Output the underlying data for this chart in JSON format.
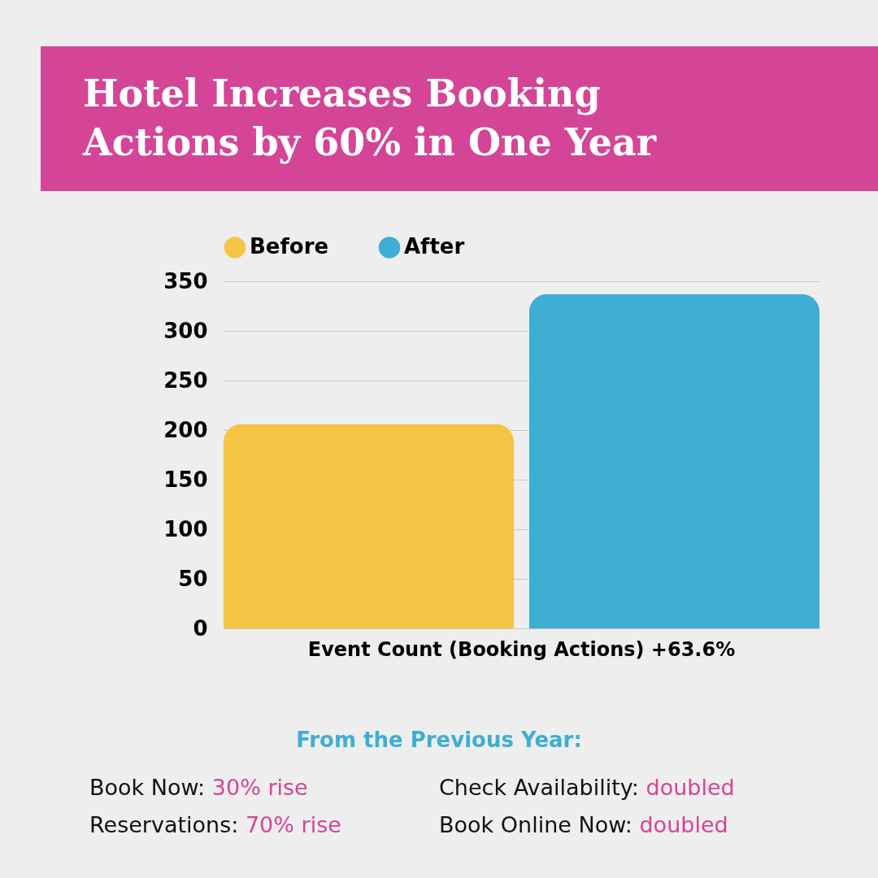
{
  "chart_data": {
    "type": "bar",
    "title": "Hotel Increases Booking Actions by 60% in One Year",
    "categories": [
      "Event Count (Booking Actions) +63.6%"
    ],
    "series": [
      {
        "name": "Before",
        "color": "#f5c445",
        "values": [
          206
        ]
      },
      {
        "name": "After",
        "color": "#3eaed5",
        "values": [
          337
        ]
      }
    ],
    "ylim": [
      0,
      350
    ],
    "yticks": [
      0,
      50,
      100,
      150,
      200,
      250,
      300,
      350
    ],
    "grid": "y",
    "legend": "top",
    "annotations": [
      "From the Previous Year:",
      "Book Now: 30% rise",
      "Check Availability: doubled",
      "Reservations: 70% rise",
      "Book Online Now: doubled"
    ]
  }
}
